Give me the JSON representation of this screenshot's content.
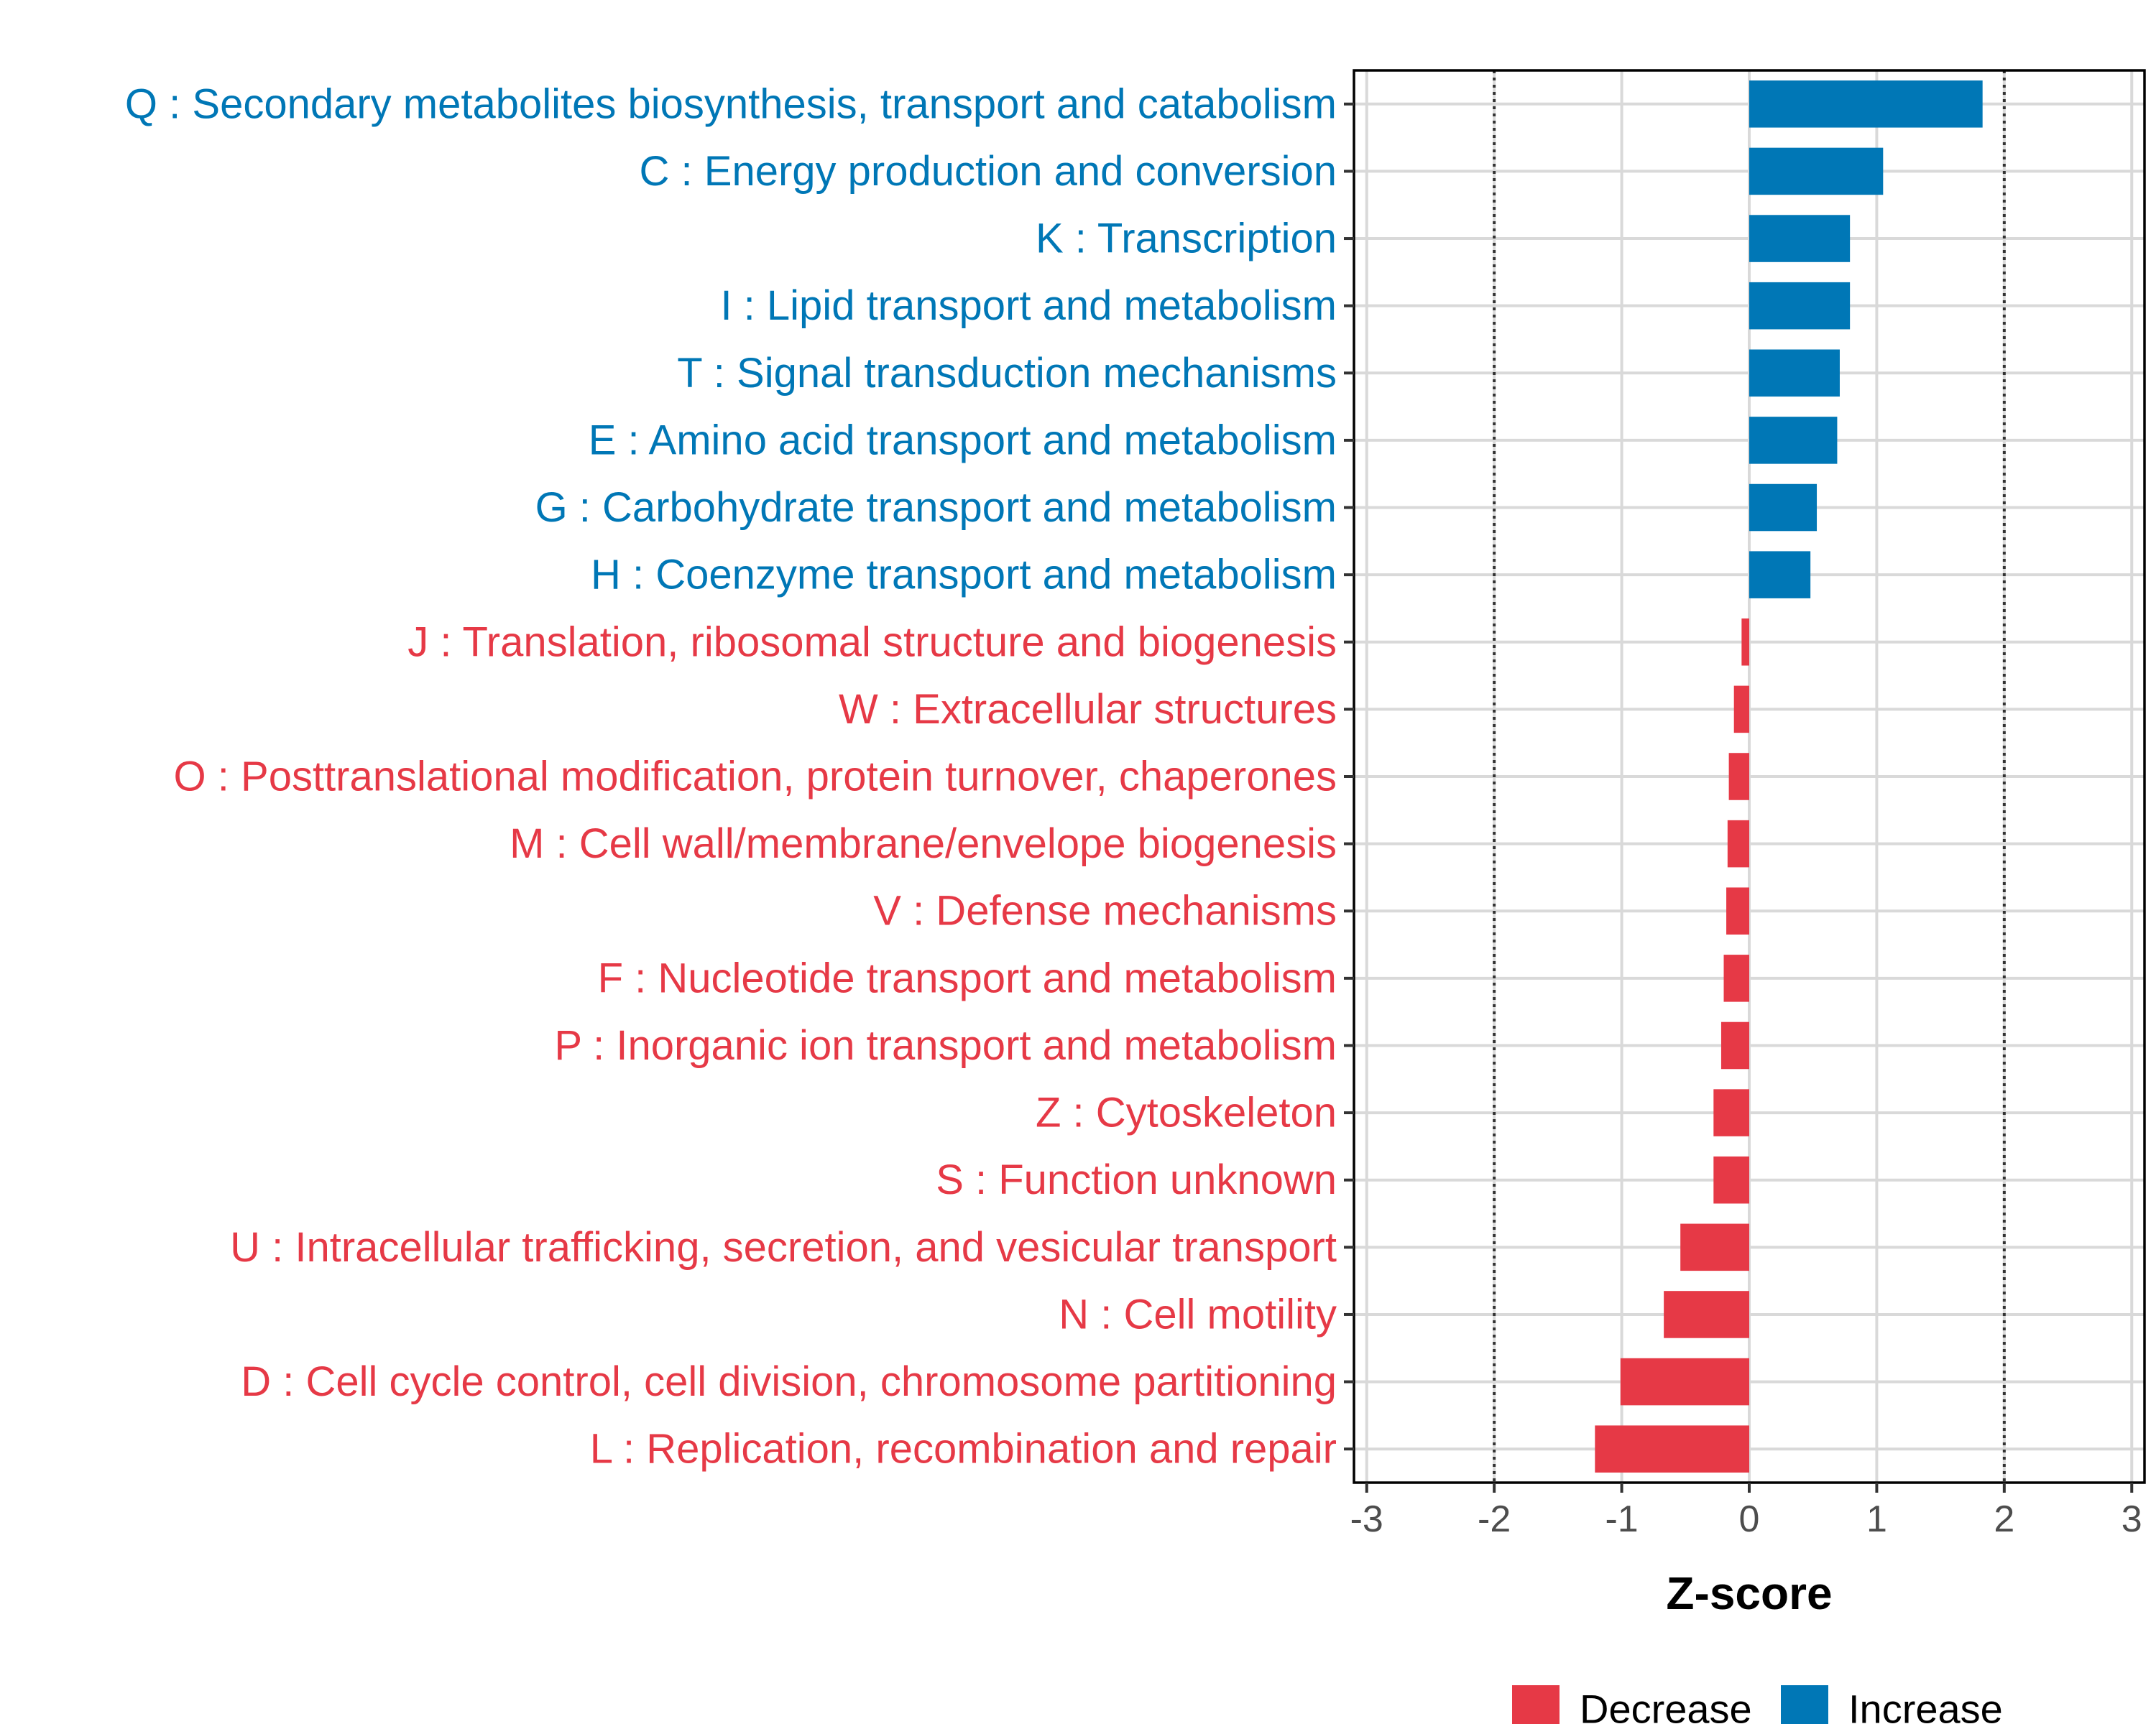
{
  "colors": {
    "increase": "#0077b6",
    "decrease": "#e63946",
    "grid": "#d9d9d9",
    "panel_border": "#000000",
    "reference_line": "#333333"
  },
  "chart_data": {
    "type": "bar",
    "orientation": "horizontal",
    "xlabel": "Z-score",
    "xlim": [
      -3.1,
      3.1
    ],
    "xticks": [
      -3,
      -2,
      -1,
      0,
      1,
      2,
      3
    ],
    "xtick_labels": [
      "-3",
      "-2",
      "-1",
      "0",
      "1",
      "2",
      "3"
    ],
    "reference_lines": [
      -2,
      2
    ],
    "grid": true,
    "legend": {
      "position": "bottom",
      "entries": [
        {
          "label": "Decrease",
          "group": "decrease"
        },
        {
          "label": "Increase",
          "group": "increase"
        }
      ]
    },
    "categories": [
      "Q : Secondary metabolites biosynthesis, transport and catabolism",
      "C : Energy production and conversion",
      "K : Transcription",
      "I : Lipid transport and metabolism",
      "T : Signal transduction mechanisms",
      "E : Amino acid transport and metabolism",
      "G : Carbohydrate transport and metabolism",
      "H : Coenzyme transport and metabolism",
      "J : Translation, ribosomal structure and biogenesis",
      "W : Extracellular structures",
      "O : Posttranslational modification, protein turnover, chaperones",
      "M : Cell wall/membrane/envelope biogenesis",
      "V : Defense mechanisms",
      "F : Nucleotide transport and metabolism",
      "P : Inorganic ion transport and metabolism",
      "Z : Cytoskeleton",
      "S : Function unknown",
      "U : Intracellular trafficking, secretion, and vesicular transport",
      "N : Cell motility",
      "D : Cell cycle control, cell division, chromosome partitioning",
      "L : Replication, recombination and repair"
    ],
    "values": [
      1.83,
      1.05,
      0.79,
      0.79,
      0.71,
      0.69,
      0.53,
      0.48,
      -0.06,
      -0.12,
      -0.16,
      -0.17,
      -0.18,
      -0.2,
      -0.22,
      -0.28,
      -0.28,
      -0.54,
      -0.67,
      -1.01,
      -1.21
    ],
    "groups": [
      "increase",
      "increase",
      "increase",
      "increase",
      "increase",
      "increase",
      "increase",
      "increase",
      "decrease",
      "decrease",
      "decrease",
      "decrease",
      "decrease",
      "decrease",
      "decrease",
      "decrease",
      "decrease",
      "decrease",
      "decrease",
      "decrease",
      "decrease"
    ]
  }
}
